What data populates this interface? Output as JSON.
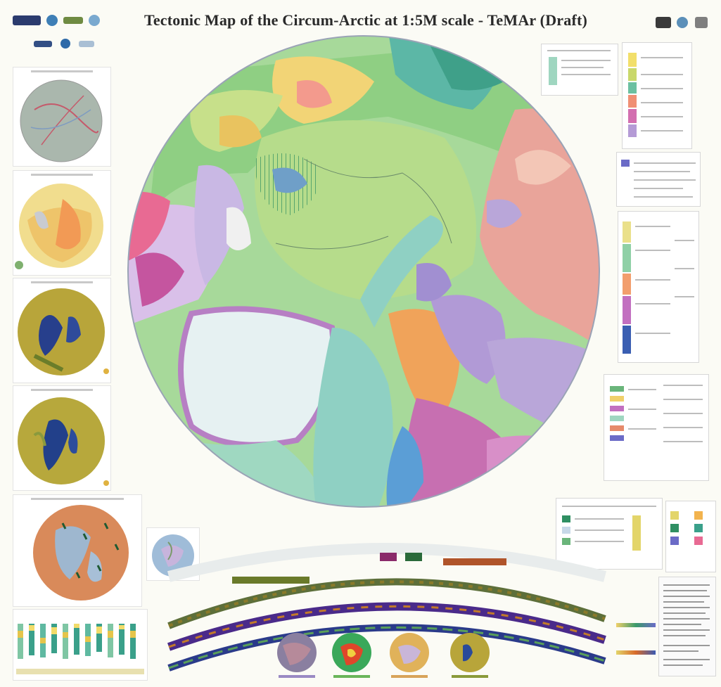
{
  "header": {
    "title": "Tectonic Map of the Circum-Arctic at 1:5M scale - TeMAr (Draft)"
  },
  "logos": {
    "left": [
      "logo-1",
      "logo-2",
      "vsegei-logo",
      "logo-4",
      "logo-5",
      "logo-6",
      "logo-7"
    ],
    "right": [
      "unesco-icon",
      "logo-b",
      "logo-c"
    ]
  },
  "colors": {
    "background": "#fbfbf5",
    "ocean_green": "#9fd6a6",
    "ocean_cyan": "#8fd0c3",
    "greenland_white": "#eaf3f3",
    "eurasia_pink": "#e9a49a",
    "violet": "#b19ad6",
    "orange": "#f0a35a"
  }
}
